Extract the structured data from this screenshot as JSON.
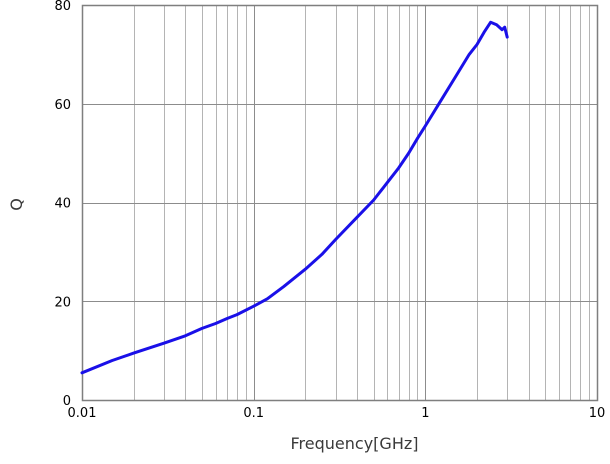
{
  "chart_data": {
    "type": "line",
    "title": "",
    "xlabel": "Frequency[GHz]",
    "ylabel": "Q",
    "x_scale": "log",
    "xlim": [
      0.01,
      10
    ],
    "ylim": [
      0,
      80
    ],
    "x_ticks": [
      0.01,
      0.1,
      1,
      10
    ],
    "x_tick_labels": [
      "0.01",
      "0.1",
      "1",
      "10"
    ],
    "y_ticks": [
      0,
      20,
      40,
      60,
      80
    ],
    "y_tick_labels": [
      "0",
      "20",
      "40",
      "60",
      "80"
    ],
    "grid": true,
    "legend": "none",
    "colors": {
      "line": "#1a10e8",
      "grid": "#b4b4b4",
      "axis": "#7f7f7f"
    },
    "series": [
      {
        "x": [
          0.01,
          0.015,
          0.02,
          0.03,
          0.04,
          0.05,
          0.06,
          0.07,
          0.08,
          0.1,
          0.12,
          0.15,
          0.2,
          0.25,
          0.3,
          0.4,
          0.5,
          0.6,
          0.7,
          0.8,
          0.9,
          1.0,
          1.2,
          1.5,
          1.8,
          2.0,
          2.2,
          2.4,
          2.6,
          2.8,
          2.9,
          3.0
        ],
        "y": [
          5.5,
          8.0,
          9.5,
          11.5,
          13.0,
          14.5,
          15.5,
          16.5,
          17.3,
          19.0,
          20.5,
          23.0,
          26.5,
          29.5,
          32.5,
          37.0,
          40.5,
          44.0,
          47.0,
          50.0,
          53.0,
          55.5,
          60.0,
          65.5,
          70.0,
          72.0,
          74.5,
          76.5,
          76.0,
          75.0,
          75.5,
          73.5
        ]
      }
    ]
  }
}
